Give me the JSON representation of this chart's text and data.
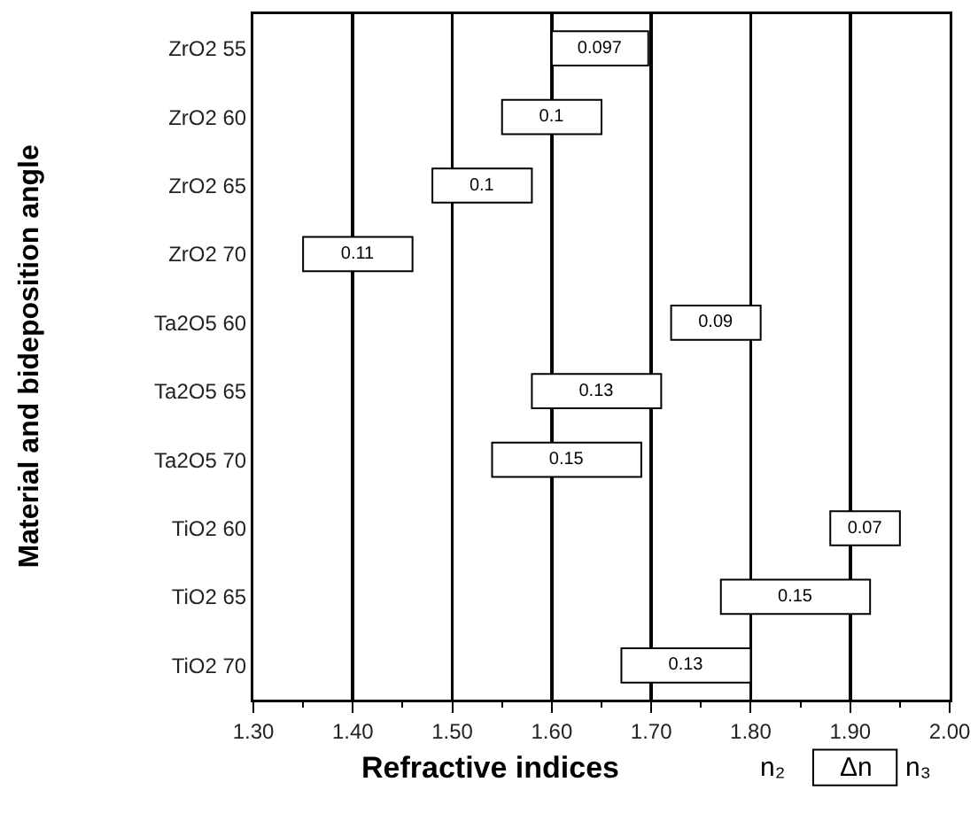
{
  "chart_data": {
    "type": "bar",
    "orientation": "horizontal",
    "ylabel": "Material and bideposition angle",
    "xlabel": "Refractive indices",
    "categories": [
      "ZrO2 55",
      "ZrO2 60",
      "ZrO2 65",
      "ZrO2 70",
      "Ta2O5 60",
      "Ta2O5 65",
      "Ta2O5 70",
      "TiO2 60",
      "TiO2 65",
      "TiO2 70"
    ],
    "base": [
      1.6,
      1.55,
      1.48,
      1.35,
      1.72,
      1.58,
      1.54,
      1.88,
      1.77,
      1.67
    ],
    "values": [
      0.097,
      0.1,
      0.1,
      0.11,
      0.09,
      0.13,
      0.15,
      0.07,
      0.15,
      0.13
    ],
    "color": "#ffffff",
    "data_labels": true,
    "xlim": [
      1.3,
      2.0
    ],
    "xticks": [
      {
        "value": 1.3,
        "label": "1.30"
      },
      {
        "value": 1.4,
        "label": "1.40"
      },
      {
        "value": 1.5,
        "label": "1.50"
      },
      {
        "value": 1.6,
        "label": "1.60"
      },
      {
        "value": 1.7,
        "label": "1.70"
      },
      {
        "value": 1.8,
        "label": "1.80"
      },
      {
        "value": 1.9,
        "label": "1.90"
      },
      {
        "value": 2.0,
        "label": "2.00"
      }
    ],
    "grid": "x",
    "annotations": [
      "n₂",
      "Δn",
      "n₃"
    ]
  }
}
